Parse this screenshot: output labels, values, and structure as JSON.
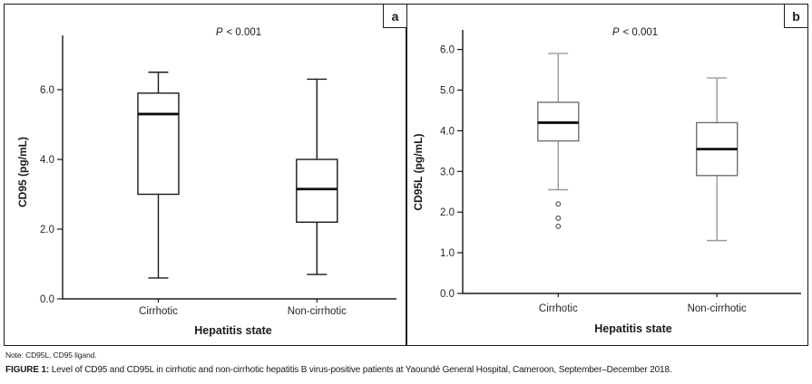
{
  "note": "Note: CD95L, CD95 ligand.",
  "caption": {
    "label": "FIGURE 1:",
    "text": " Level of CD95 and CD95L in cirrhotic and non-cirrhotic hepatitis B virus-positive patients at Yaoundé General Hospital, Cameroon, September–December 2018."
  },
  "chart_data": [
    {
      "type": "box",
      "panel_label": "a",
      "p_value": "P < 0.001",
      "title": "",
      "ylabel": "CD95 (pg/mL)",
      "xlabel": "Hepatitis state",
      "categories": [
        "Cirrhotic",
        "Non-cirrhotic"
      ],
      "yticks": [
        0.0,
        2.0,
        4.0,
        6.0
      ],
      "ylim": [
        0,
        7.5
      ],
      "grid": false,
      "boxes": [
        {
          "category": "Cirrhotic",
          "whisker_low": 0.6,
          "q1": 3.0,
          "median": 5.3,
          "q3": 5.9,
          "whisker_high": 6.5,
          "outliers": []
        },
        {
          "category": "Non-cirrhotic",
          "whisker_low": 0.7,
          "q1": 2.2,
          "median": 3.15,
          "q3": 4.0,
          "whisker_high": 6.3,
          "outliers": []
        }
      ],
      "style": {
        "axis_color": "#1a1a1a",
        "box_border": "#1a1a1a",
        "whisker": "#1a1a1a",
        "median": "#0d0d0d",
        "outlier": "#4a4a4a",
        "box_fill": "#ffffff"
      }
    },
    {
      "type": "box",
      "panel_label": "b",
      "p_value": "P < 0.001",
      "title": "",
      "ylabel": "CD95L (pg/mL)",
      "xlabel": "Hepatitis state",
      "categories": [
        "Cirrhotic",
        "Non-cirrhotic"
      ],
      "yticks": [
        0.0,
        1.0,
        2.0,
        3.0,
        4.0,
        5.0,
        6.0
      ],
      "ylim": [
        0,
        6.5
      ],
      "grid": false,
      "boxes": [
        {
          "category": "Cirrhotic",
          "whisker_low": 2.55,
          "q1": 3.75,
          "median": 4.2,
          "q3": 4.7,
          "whisker_high": 5.9,
          "outliers": [
            2.2,
            1.85,
            1.65
          ]
        },
        {
          "category": "Non-cirrhotic",
          "whisker_low": 1.3,
          "q1": 2.9,
          "median": 3.55,
          "q3": 4.2,
          "whisker_high": 5.3,
          "outliers": []
        }
      ],
      "style": {
        "axis_color": "#1a1a1a",
        "box_border": "#707070",
        "whisker": "#9a9a9a",
        "median": "#0d0d0d",
        "outlier": "#4a4a4a",
        "box_fill": "#ffffff"
      }
    }
  ]
}
